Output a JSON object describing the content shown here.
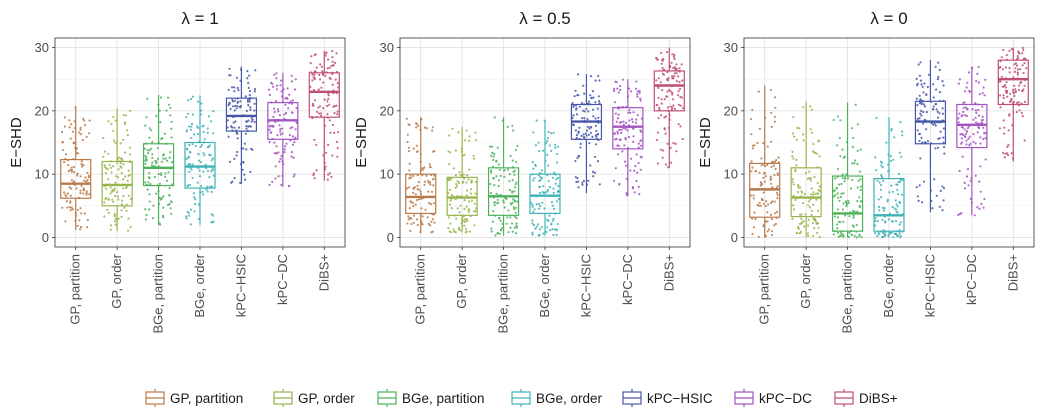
{
  "chart_data": [
    {
      "type": "box",
      "title": "λ = 1",
      "ylabel": "E−SHD",
      "ylim": [
        -1.5,
        31.5
      ],
      "yticks": [
        0,
        10,
        20,
        30
      ],
      "categories": [
        "GP, partition",
        "GP, order",
        "BGe, partition",
        "BGe, order",
        "kPC−HSIC",
        "kPC−DC",
        "DiBS+"
      ],
      "boxes": [
        {
          "q1": 6.2,
          "median": 8.5,
          "q3": 12.3,
          "whisker_low": 1.2,
          "whisker_high": 20.6
        },
        {
          "q1": 5.0,
          "median": 8.3,
          "q3": 12.0,
          "whisker_low": 1.0,
          "whisker_high": 20.4
        },
        {
          "q1": 8.2,
          "median": 11.0,
          "q3": 14.8,
          "whisker_low": 2.0,
          "whisker_high": 22.5
        },
        {
          "q1": 7.8,
          "median": 11.2,
          "q3": 15.0,
          "whisker_low": 2.0,
          "whisker_high": 22.4
        },
        {
          "q1": 16.8,
          "median": 19.2,
          "q3": 22.0,
          "whisker_low": 8.5,
          "whisker_high": 27.0
        },
        {
          "q1": 15.5,
          "median": 18.5,
          "q3": 21.3,
          "whisker_low": 8.0,
          "whisker_high": 26.0
        },
        {
          "q1": 19.0,
          "median": 23.0,
          "q3": 26.0,
          "whisker_low": 9.0,
          "whisker_high": 29.5
        }
      ],
      "grid": true
    },
    {
      "type": "box",
      "title": "λ = 0.5",
      "ylabel": "E−SHD",
      "ylim": [
        -1.5,
        31.5
      ],
      "yticks": [
        0,
        10,
        20,
        30
      ],
      "categories": [
        "GP, partition",
        "GP, order",
        "BGe, partition",
        "BGe, order",
        "kPC−HSIC",
        "kPC−DC",
        "DiBS+"
      ],
      "boxes": [
        {
          "q1": 3.8,
          "median": 6.4,
          "q3": 10.0,
          "whisker_low": 0.8,
          "whisker_high": 19.0
        },
        {
          "q1": 3.5,
          "median": 6.3,
          "q3": 9.5,
          "whisker_low": 0.8,
          "whisker_high": 17.5
        },
        {
          "q1": 3.5,
          "median": 6.5,
          "q3": 11.0,
          "whisker_low": 0.3,
          "whisker_high": 19.0
        },
        {
          "q1": 3.8,
          "median": 6.6,
          "q3": 10.0,
          "whisker_low": 0.3,
          "whisker_high": 18.5
        },
        {
          "q1": 15.5,
          "median": 18.3,
          "q3": 21.0,
          "whisker_low": 7.0,
          "whisker_high": 25.8
        },
        {
          "q1": 14.0,
          "median": 17.5,
          "q3": 20.5,
          "whisker_low": 6.5,
          "whisker_high": 25.0
        },
        {
          "q1": 20.0,
          "median": 24.0,
          "q3": 26.3,
          "whisker_low": 11.0,
          "whisker_high": 30.0
        }
      ],
      "grid": true
    },
    {
      "type": "box",
      "title": "λ = 0",
      "ylabel": "E−SHD",
      "ylim": [
        -1.5,
        31.5
      ],
      "yticks": [
        0,
        10,
        20,
        30
      ],
      "categories": [
        "GP, partition",
        "GP, order",
        "BGe, partition",
        "BGe, order",
        "kPC−HSIC",
        "kPC−DC",
        "DiBS+"
      ],
      "boxes": [
        {
          "q1": 3.2,
          "median": 7.6,
          "q3": 11.7,
          "whisker_low": 0.0,
          "whisker_high": 24.0
        },
        {
          "q1": 3.3,
          "median": 6.3,
          "q3": 11.0,
          "whisker_low": 0.0,
          "whisker_high": 21.5
        },
        {
          "q1": 1.0,
          "median": 3.8,
          "q3": 9.7,
          "whisker_low": 0.0,
          "whisker_high": 21.3
        },
        {
          "q1": 1.0,
          "median": 3.5,
          "q3": 9.3,
          "whisker_low": 0.0,
          "whisker_high": 19.0
        },
        {
          "q1": 14.8,
          "median": 18.3,
          "q3": 21.5,
          "whisker_low": 4.0,
          "whisker_high": 28.0
        },
        {
          "q1": 14.2,
          "median": 17.8,
          "q3": 21.0,
          "whisker_low": 3.5,
          "whisker_high": 27.0
        },
        {
          "q1": 21.0,
          "median": 25.0,
          "q3": 28.0,
          "whisker_low": 12.0,
          "whisker_high": 30.0
        }
      ],
      "grid": true
    }
  ],
  "legend": {
    "position": "bottom",
    "items": [
      {
        "label": "GP, partition",
        "color": "#b87a4b"
      },
      {
        "label": "GP, order",
        "color": "#97b54b"
      },
      {
        "label": "BGe, partition",
        "color": "#4cb25a"
      },
      {
        "label": "BGe, order",
        "color": "#3eb2b6"
      },
      {
        "label": "kPC−HSIC",
        "color": "#4557a8"
      },
      {
        "label": "kPC−DC",
        "color": "#a254c0"
      },
      {
        "label": "DiBS+",
        "color": "#c04d78"
      }
    ]
  }
}
